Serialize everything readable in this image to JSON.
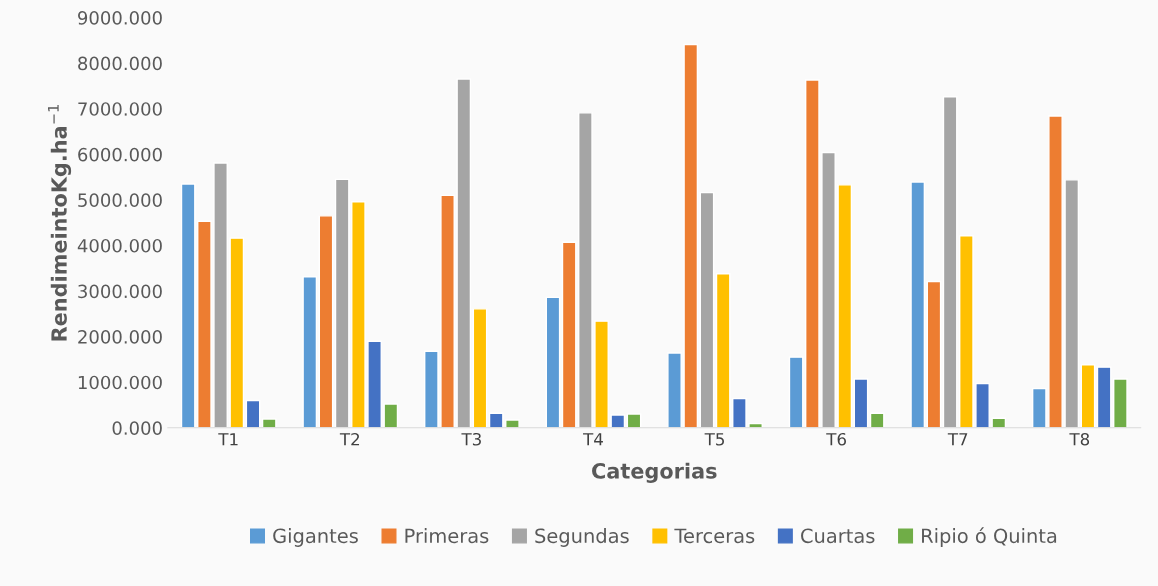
{
  "chart_data": {
    "type": "bar",
    "xlabel": "Categorias",
    "ylabel": "RendimeintoKg.ha$^{−1}$",
    "categories": [
      "T1",
      "T2",
      "T3",
      "T4",
      "T5",
      "T6",
      "T7",
      "T8"
    ],
    "series": [
      {
        "name": "Gigantes",
        "color": "#5b9bd5",
        "values": [
          5350,
          3310,
          1680,
          2860,
          1640,
          1550,
          5390,
          860
        ]
      },
      {
        "name": "Primeras",
        "color": "#ed7d31",
        "values": [
          4530,
          4650,
          5100,
          4070,
          8410,
          7630,
          3210,
          6840
        ]
      },
      {
        "name": "Segundas",
        "color": "#a5a5a5",
        "values": [
          5810,
          5450,
          7650,
          6910,
          5160,
          6040,
          7260,
          5440
        ]
      },
      {
        "name": "Terceras",
        "color": "#ffc000",
        "values": [
          4160,
          4960,
          2610,
          2340,
          3380,
          5330,
          4210,
          1380
        ]
      },
      {
        "name": "Cuartas",
        "color": "#4472c4",
        "values": [
          600,
          1900,
          320,
          280,
          640,
          1070,
          970,
          1330
        ]
      },
      {
        "name": "Ripio ó Quinta",
        "color": "#70ad47",
        "values": [
          190,
          520,
          170,
          300,
          90,
          320,
          210,
          1070
        ]
      }
    ],
    "ylim": [
      0,
      9000
    ],
    "yticks": [
      {
        "value": 0,
        "label": "0.000"
      },
      {
        "value": 1000,
        "label": "1000.000"
      },
      {
        "value": 2000,
        "label": "2000.000"
      },
      {
        "value": 3000,
        "label": "3000.000"
      },
      {
        "value": 4000,
        "label": "4000.000"
      },
      {
        "value": 5000,
        "label": "5000.000"
      },
      {
        "value": 6000,
        "label": "6000.000"
      },
      {
        "value": 7000,
        "label": "7000.000"
      },
      {
        "value": 8000,
        "label": "8000.000"
      },
      {
        "value": 9000,
        "label": "9000.000"
      }
    ],
    "legend": "bottom"
  }
}
